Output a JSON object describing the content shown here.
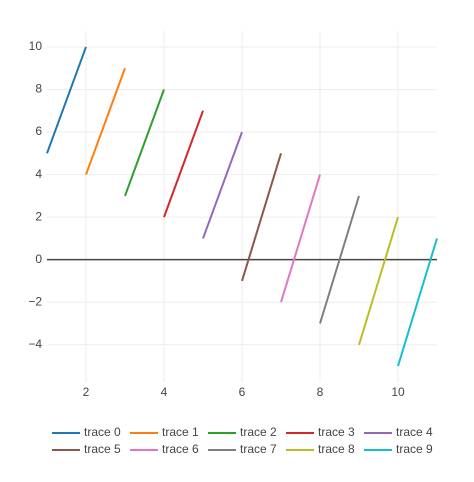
{
  "chart_data": {
    "type": "line",
    "series": [
      {
        "name": "trace 0",
        "color": "#1f77b4",
        "x": [
          1,
          2
        ],
        "values": [
          5,
          10
        ]
      },
      {
        "name": "trace 1",
        "color": "#ff7f0e",
        "x": [
          2,
          3
        ],
        "values": [
          4,
          9
        ]
      },
      {
        "name": "trace 2",
        "color": "#2ca02c",
        "x": [
          3,
          4
        ],
        "values": [
          3,
          8
        ]
      },
      {
        "name": "trace 3",
        "color": "#d62728",
        "x": [
          4,
          5
        ],
        "values": [
          2,
          7
        ]
      },
      {
        "name": "trace 4",
        "color": "#9467bd",
        "x": [
          5,
          6
        ],
        "values": [
          1,
          6
        ]
      },
      {
        "name": "trace 5",
        "color": "#8c564b",
        "x": [
          6,
          7
        ],
        "values": [
          -1,
          5
        ]
      },
      {
        "name": "trace 6",
        "color": "#e377c2",
        "x": [
          7,
          8
        ],
        "values": [
          -2,
          4
        ]
      },
      {
        "name": "trace 7",
        "color": "#7f7f7f",
        "x": [
          8,
          9
        ],
        "values": [
          -3,
          3
        ]
      },
      {
        "name": "trace 8",
        "color": "#bcbd22",
        "x": [
          9,
          10
        ],
        "values": [
          -4,
          2
        ]
      },
      {
        "name": "trace 9",
        "color": "#17becf",
        "x": [
          10,
          11
        ],
        "values": [
          -5,
          1
        ]
      }
    ],
    "xlim": [
      1,
      11
    ],
    "xticks": [
      2,
      4,
      6,
      8,
      10
    ],
    "ylim": [
      -5.75,
      10.75
    ],
    "yticks": [
      {
        "value": -4,
        "label": "−4"
      },
      {
        "value": -2,
        "label": "−2"
      },
      0,
      2,
      4,
      6,
      8,
      10
    ],
    "grid": true,
    "legend": "bottom"
  }
}
